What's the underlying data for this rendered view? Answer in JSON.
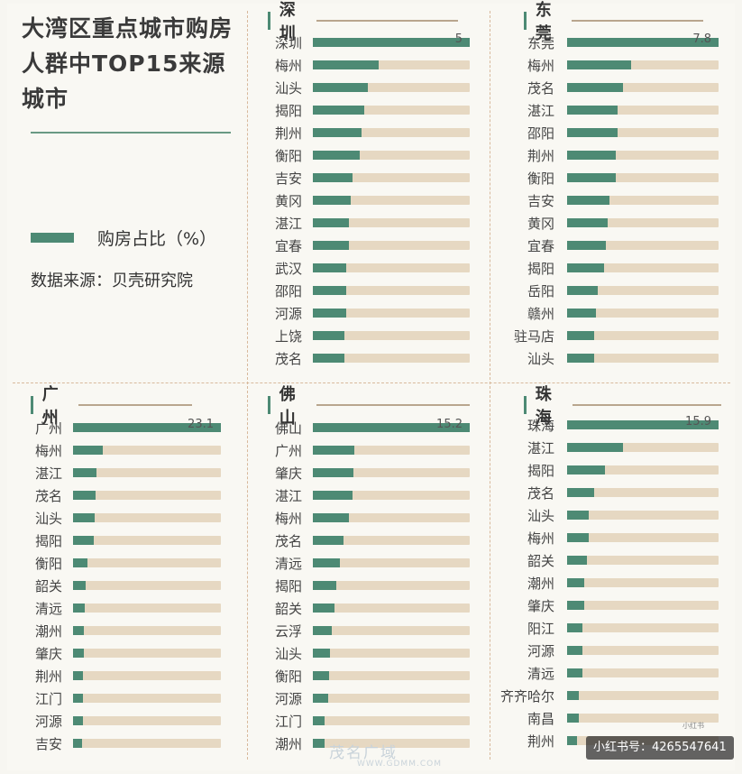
{
  "title": "大湾区重点城市购房人群中TOP15来源城市",
  "legend_label": "购房占比（%）",
  "source": "数据来源：贝壳研究院",
  "colors": {
    "bar": "#4d8a74",
    "track": "#e6d8c2"
  },
  "watermark": {
    "brand": "茂名广域",
    "url": "WWW.GDMM.COM"
  },
  "xhs": {
    "badge": "小红书号：4265547641",
    "logo": "小红书"
  },
  "chart_data": [
    {
      "type": "bar",
      "title": "深圳",
      "max": 5,
      "categories": [
        "深圳",
        "梅州",
        "汕头",
        "揭阳",
        "荆州",
        "衡阳",
        "吉安",
        "黄冈",
        "湛江",
        "宜春",
        "武汉",
        "邵阳",
        "河源",
        "上饶",
        "茂名"
      ],
      "values": [
        5,
        2.1,
        1.75,
        1.65,
        1.55,
        1.5,
        1.25,
        1.2,
        1.15,
        1.15,
        1.05,
        1.05,
        1.05,
        1.0,
        1.0
      ],
      "labels": [
        "5",
        "",
        "",
        "",
        "",
        "",
        "",
        "",
        "",
        "",
        "",
        "",
        "",
        "",
        ""
      ]
    },
    {
      "type": "bar",
      "title": "东莞",
      "max": 7.8,
      "categories": [
        "东莞",
        "梅州",
        "茂名",
        "湛江",
        "邵阳",
        "荆州",
        "衡阳",
        "吉安",
        "黄冈",
        "宜春",
        "揭阳",
        "岳阳",
        "赣州",
        "驻马店",
        "汕头"
      ],
      "values": [
        7.8,
        3.3,
        2.9,
        2.6,
        2.6,
        2.5,
        2.5,
        2.2,
        2.1,
        2.0,
        1.9,
        1.6,
        1.5,
        1.4,
        1.4
      ],
      "labels": [
        "7.8",
        "",
        "",
        "",
        "",
        "",
        "",
        "",
        "",
        "",
        "",
        "",
        "",
        "",
        ""
      ]
    },
    {
      "type": "bar",
      "title": "广州",
      "max": 23.1,
      "categories": [
        "广州",
        "梅州",
        "湛江",
        "茂名",
        "汕头",
        "揭阳",
        "衡阳",
        "韶关",
        "清远",
        "潮州",
        "肇庆",
        "荆州",
        "江门",
        "河源",
        "吉安"
      ],
      "values": [
        23.1,
        4.6,
        3.6,
        3.5,
        3.4,
        3.3,
        2.2,
        2.0,
        1.9,
        1.7,
        1.7,
        1.6,
        1.5,
        1.5,
        1.4
      ],
      "labels": [
        "23.1",
        "",
        "",
        "",
        "",
        "",
        "",
        "",
        "",
        "",
        "",
        "",
        "",
        "",
        ""
      ]
    },
    {
      "type": "bar",
      "title": "佛山",
      "max": 15.2,
      "categories": [
        "佛山",
        "广州",
        "肇庆",
        "湛江",
        "梅州",
        "茂名",
        "清远",
        "揭阳",
        "韶关",
        "云浮",
        "汕头",
        "衡阳",
        "河源",
        "江门",
        "潮州"
      ],
      "values": [
        15.2,
        4.0,
        3.9,
        3.8,
        3.5,
        3.0,
        2.6,
        2.3,
        2.1,
        1.8,
        1.7,
        1.6,
        1.5,
        1.1,
        1.1
      ],
      "labels": [
        "15.2",
        "",
        "",
        "",
        "",
        "",
        "",
        "",
        "",
        "",
        "",
        "",
        "",
        "",
        ""
      ]
    },
    {
      "type": "bar",
      "title": "珠海",
      "max": 15.9,
      "categories": [
        "珠海",
        "湛江",
        "揭阳",
        "茂名",
        "汕头",
        "梅州",
        "韶关",
        "潮州",
        "肇庆",
        "阳江",
        "河源",
        "清远",
        "齐齐哈尔",
        "南昌",
        "荆州"
      ],
      "values": [
        15.9,
        5.9,
        4.0,
        2.8,
        2.3,
        2.3,
        2.1,
        1.8,
        1.8,
        1.6,
        1.6,
        1.6,
        1.2,
        1.2,
        1.0
      ],
      "labels": [
        "15.9",
        "",
        "",
        "",
        "",
        "",
        "",
        "",
        "",
        "",
        "",
        "",
        "",
        "",
        ""
      ]
    }
  ]
}
